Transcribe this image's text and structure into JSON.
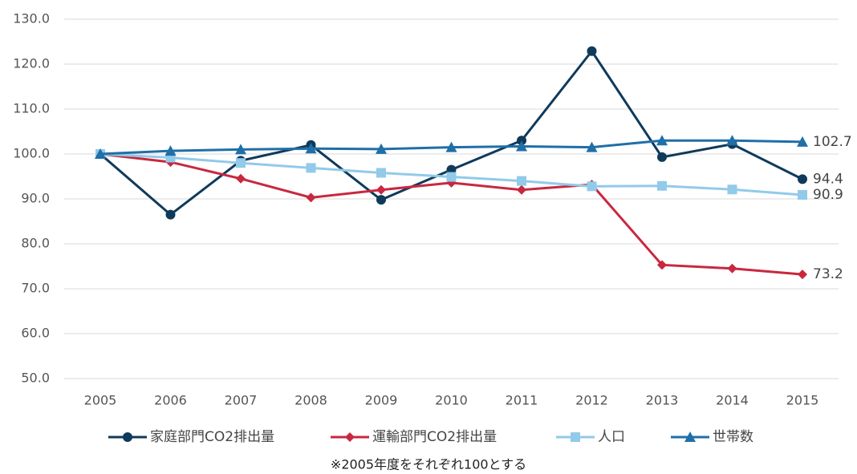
{
  "chart_data": {
    "type": "line",
    "categories": [
      "2005",
      "2006",
      "2007",
      "2008",
      "2009",
      "2010",
      "2011",
      "2012",
      "2013",
      "2014",
      "2015"
    ],
    "series": [
      {
        "name": "家庭部門CO2排出量",
        "color": "#0f3a5a",
        "marker": "circle",
        "values": [
          100,
          86.5,
          98.5,
          102,
          89.8,
          96.5,
          103,
          122.9,
          99.3,
          102.2,
          94.4
        ]
      },
      {
        "name": "運輸部門CO2排出量",
        "color": "#c8283f",
        "marker": "diamond",
        "values": [
          100,
          98.2,
          94.5,
          90.3,
          92,
          93.6,
          92,
          93.2,
          75.3,
          74.5,
          73.2
        ]
      },
      {
        "name": "人口",
        "color": "#92caea",
        "marker": "square",
        "values": [
          100,
          99.2,
          98,
          96.9,
          95.8,
          94.9,
          94,
          92.8,
          92.9,
          92.1,
          90.9
        ]
      },
      {
        "name": "世帯数",
        "color": "#1f6fa8",
        "marker": "triangle",
        "values": [
          100,
          100.7,
          101,
          101.2,
          101.1,
          101.5,
          101.7,
          101.5,
          103,
          103,
          102.7
        ]
      }
    ],
    "ylim": [
      50,
      130
    ],
    "yticks": [
      {
        "value": 50,
        "label": "50.0"
      },
      {
        "value": 60,
        "label": "60.0"
      },
      {
        "value": 70,
        "label": "70.0"
      },
      {
        "value": 80,
        "label": "80.0"
      },
      {
        "value": 90,
        "label": "90.0"
      },
      {
        "value": 100,
        "label": "100.0"
      },
      {
        "value": 110,
        "label": "110.0"
      },
      {
        "value": 120,
        "label": "120.0"
      },
      {
        "value": 130,
        "label": "130.0"
      }
    ],
    "grid": true,
    "label_last_point": true,
    "legend": "bottom",
    "note": "※2005年度をそれぞれ100とする"
  }
}
